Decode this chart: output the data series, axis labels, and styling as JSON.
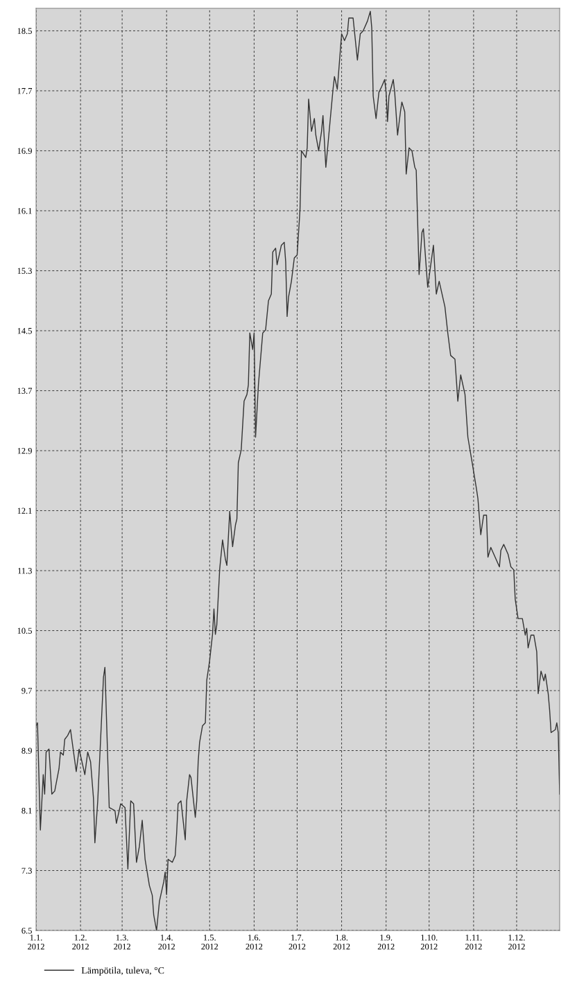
{
  "chart_data": {
    "type": "line",
    "x": [
      "2012-01-01",
      "2012-01-02",
      "2012-01-04",
      "2012-01-06",
      "2012-01-07",
      "2012-01-08",
      "2012-01-10",
      "2012-01-12",
      "2012-01-14",
      "2012-01-17",
      "2012-01-18",
      "2012-01-20",
      "2012-01-21",
      "2012-01-23",
      "2012-01-25",
      "2012-01-29",
      "2012-01-31",
      "2012-02-04",
      "2012-02-06",
      "2012-02-08",
      "2012-02-10",
      "2012-02-11",
      "2012-02-13",
      "2012-02-17",
      "2012-02-18",
      "2012-02-21",
      "2012-02-25",
      "2012-02-26",
      "2012-02-29",
      "2012-03-03",
      "2012-03-05",
      "2012-03-07",
      "2012-03-09",
      "2012-03-11",
      "2012-03-13",
      "2012-03-15",
      "2012-03-17",
      "2012-03-20",
      "2012-03-22",
      "2012-03-23",
      "2012-03-25",
      "2012-03-27",
      "2012-03-30",
      "2012-03-31",
      "2012-04-01",
      "2012-04-02",
      "2012-04-05",
      "2012-04-07",
      "2012-04-08",
      "2012-04-09",
      "2012-04-11",
      "2012-04-14",
      "2012-04-15",
      "2012-04-17",
      "2012-04-18",
      "2012-04-21",
      "2012-04-22",
      "2012-04-23",
      "2012-04-24",
      "2012-04-26",
      "2012-04-28",
      "2012-04-29",
      "2012-05-01",
      "2012-05-03",
      "2012-05-04",
      "2012-05-05",
      "2012-05-06",
      "2012-05-08",
      "2012-05-10",
      "2012-05-12",
      "2012-05-13",
      "2012-05-15",
      "2012-05-17",
      "2012-05-19",
      "2012-05-20",
      "2012-05-21",
      "2012-05-23",
      "2012-05-25",
      "2012-05-27",
      "2012-05-28",
      "2012-05-29",
      "2012-05-31",
      "2012-06-01",
      "2012-06-02",
      "2012-06-04",
      "2012-06-07",
      "2012-06-09",
      "2012-06-11",
      "2012-06-13",
      "2012-06-14",
      "2012-06-16",
      "2012-06-17",
      "2012-06-20",
      "2012-06-22",
      "2012-06-23",
      "2012-06-24",
      "2012-06-25",
      "2012-06-27",
      "2012-06-29",
      "2012-07-01",
      "2012-07-03",
      "2012-07-04",
      "2012-07-07",
      "2012-07-08",
      "2012-07-09",
      "2012-07-11",
      "2012-07-13",
      "2012-07-14",
      "2012-07-16",
      "2012-07-18",
      "2012-07-19",
      "2012-07-21",
      "2012-07-26",
      "2012-07-27",
      "2012-07-29",
      "2012-08-01",
      "2012-08-03",
      "2012-08-05",
      "2012-08-06",
      "2012-08-09",
      "2012-08-12",
      "2012-08-14",
      "2012-08-16",
      "2012-08-19",
      "2012-08-21",
      "2012-08-22",
      "2012-08-23",
      "2012-08-25",
      "2012-08-27",
      "2012-08-29",
      "2012-08-31",
      "2012-09-01",
      "2012-09-02",
      "2012-09-03",
      "2012-09-06",
      "2012-09-07",
      "2012-09-09",
      "2012-09-11",
      "2012-09-12",
      "2012-09-14",
      "2012-09-15",
      "2012-09-17",
      "2012-09-19",
      "2012-09-21",
      "2012-09-22",
      "2012-09-24",
      "2012-09-26",
      "2012-09-27",
      "2012-09-30",
      "2012-10-04",
      "2012-10-06",
      "2012-10-08",
      "2012-10-12",
      "2012-10-14",
      "2012-10-16",
      "2012-10-19",
      "2012-10-21",
      "2012-10-23",
      "2012-10-26",
      "2012-10-28",
      "2012-10-31",
      "2012-11-03",
      "2012-11-04",
      "2012-11-06",
      "2012-11-08",
      "2012-11-10",
      "2012-11-11",
      "2012-11-13",
      "2012-11-19",
      "2012-11-20",
      "2012-11-22",
      "2012-11-25",
      "2012-11-27",
      "2012-11-29",
      "2012-11-30",
      "2012-12-02",
      "2012-12-05",
      "2012-12-07",
      "2012-12-08",
      "2012-12-09",
      "2012-12-11",
      "2012-12-13",
      "2012-12-15",
      "2012-12-16",
      "2012-12-18",
      "2012-12-20",
      "2012-12-21",
      "2012-12-23",
      "2012-12-24",
      "2012-12-25",
      "2012-12-28",
      "2012-12-29",
      "2012-12-30",
      "2012-12-31"
    ],
    "series": [
      {
        "name": "Lämpötila, tuleva, °C",
        "color": "#333333",
        "values": [
          9.23,
          9.27,
          7.84,
          8.58,
          8.32,
          8.88,
          8.92,
          8.32,
          8.36,
          8.66,
          8.88,
          8.84,
          9.05,
          9.1,
          9.18,
          8.62,
          8.92,
          8.58,
          8.88,
          8.75,
          8.27,
          7.67,
          8.23,
          9.88,
          10.01,
          8.14,
          8.1,
          7.93,
          8.19,
          8.14,
          7.32,
          8.23,
          8.19,
          7.41,
          7.62,
          7.97,
          7.45,
          7.1,
          6.97,
          6.71,
          6.5,
          6.89,
          7.15,
          7.28,
          6.98,
          7.45,
          7.41,
          7.5,
          7.8,
          8.19,
          8.23,
          7.71,
          8.23,
          8.58,
          8.54,
          8.01,
          8.23,
          8.75,
          9.01,
          9.23,
          9.27,
          9.84,
          10.1,
          10.45,
          10.79,
          10.45,
          10.58,
          11.32,
          11.71,
          11.45,
          11.37,
          12.09,
          11.62,
          11.91,
          11.99,
          12.74,
          12.91,
          13.56,
          13.65,
          13.78,
          14.47,
          14.25,
          14.47,
          13.08,
          13.78,
          14.47,
          14.51,
          14.9,
          14.99,
          15.55,
          15.6,
          15.38,
          15.64,
          15.68,
          15.42,
          14.69,
          14.95,
          15.16,
          15.47,
          15.51,
          16.12,
          16.9,
          16.81,
          16.94,
          17.59,
          17.16,
          17.33,
          17.11,
          16.9,
          17.16,
          17.37,
          16.68,
          17.72,
          17.89,
          17.72,
          18.46,
          18.37,
          18.46,
          18.67,
          18.67,
          18.11,
          18.46,
          18.5,
          18.63,
          18.76,
          18.54,
          17.63,
          17.33,
          17.68,
          17.76,
          17.85,
          17.68,
          17.29,
          17.63,
          17.85,
          17.68,
          17.11,
          17.42,
          17.55,
          17.42,
          16.59,
          16.94,
          16.9,
          16.68,
          16.64,
          15.25,
          15.81,
          15.86,
          15.08,
          15.64,
          14.99,
          15.16,
          14.82,
          14.47,
          14.17,
          14.12,
          13.56,
          13.91,
          13.65,
          13.08,
          12.74,
          12.39,
          12.26,
          11.78,
          12.04,
          12.04,
          11.48,
          11.61,
          11.35,
          11.57,
          11.65,
          11.52,
          11.35,
          11.31,
          10.92,
          10.66,
          10.66,
          10.44,
          10.53,
          10.27,
          10.44,
          10.44,
          10.22,
          9.66,
          9.96,
          9.83,
          9.92,
          9.66,
          9.44,
          9.14,
          9.18,
          9.27,
          9.14,
          8.32
        ]
      }
    ],
    "xlim": [
      "2012-01-01",
      "2012-12-31"
    ],
    "xticks": [
      {
        "value": "2012-01-01",
        "label": "1.1.\n2012"
      },
      {
        "value": "2012-02-01",
        "label": "1.2.\n2012"
      },
      {
        "value": "2012-03-01",
        "label": "1.3.\n2012"
      },
      {
        "value": "2012-04-01",
        "label": "1.4.\n2012"
      },
      {
        "value": "2012-05-01",
        "label": "1.5.\n2012"
      },
      {
        "value": "2012-06-01",
        "label": "1.6.\n2012"
      },
      {
        "value": "2012-07-01",
        "label": "1.7.\n2012"
      },
      {
        "value": "2012-08-01",
        "label": "1.8.\n2012"
      },
      {
        "value": "2012-09-01",
        "label": "1.9.\n2012"
      },
      {
        "value": "2012-10-01",
        "label": "1.10.\n2012"
      },
      {
        "value": "2012-11-01",
        "label": "1.11.\n2012"
      },
      {
        "value": "2012-12-01",
        "label": "1.12.\n2012"
      }
    ],
    "ylim": [
      6.5,
      18.8
    ],
    "yticks": [
      6.5,
      7.3,
      8.1,
      8.9,
      9.7,
      10.5,
      11.3,
      12.1,
      12.9,
      13.7,
      14.5,
      15.3,
      16.1,
      16.9,
      17.7,
      18.5
    ],
    "grid": true,
    "legend": "bottom",
    "line_style": "solid",
    "marker": "none"
  }
}
